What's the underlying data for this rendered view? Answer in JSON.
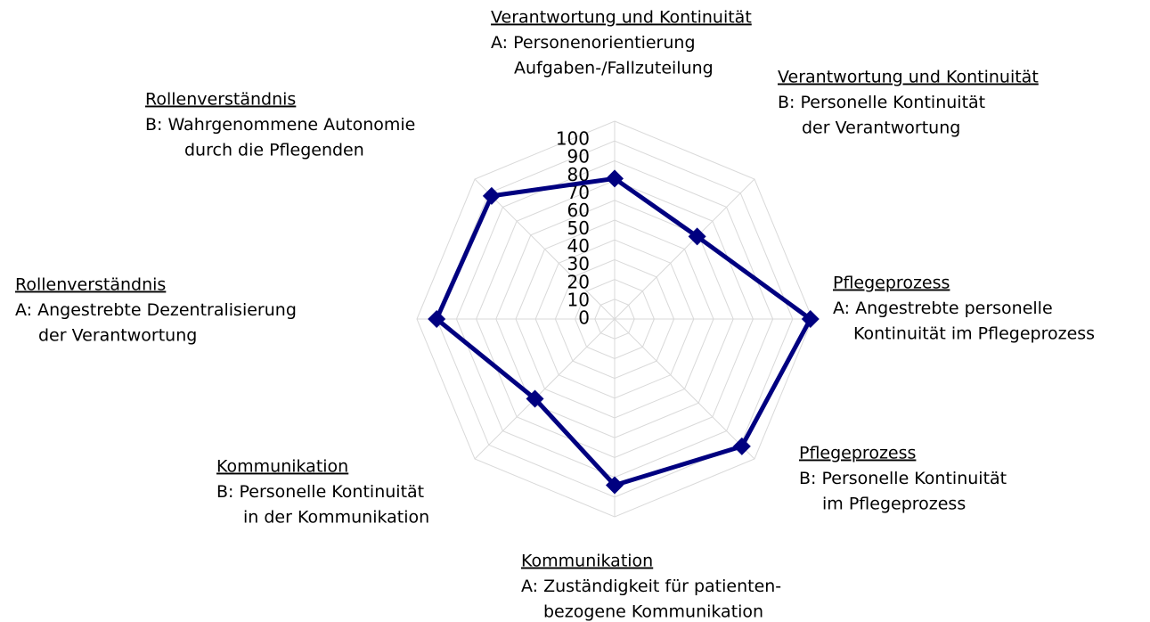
{
  "chart_data": {
    "type": "radar",
    "categories": [
      {
        "title": "Verantwortung und Kontinuität",
        "lines": [
          "A: Personenorientierung",
          "Aufgaben-/Fallzuteilung"
        ]
      },
      {
        "title": "Verantwortung und Kontinuität",
        "lines": [
          "B: Personelle Kontinuität",
          "der Verantwortung"
        ]
      },
      {
        "title": "Pflegeprozess",
        "lines": [
          "A: Angestrebte personelle",
          "Kontinuität im Pflegeprozess"
        ]
      },
      {
        "title": "Pflegeprozess",
        "lines": [
          "B: Personelle Kontinuität",
          "im Pflegeprozess"
        ]
      },
      {
        "title": "Kommunikation",
        "lines": [
          "A: Zuständigkeit für patienten-",
          "bezogene Kommunikation"
        ]
      },
      {
        "title": "Kommunikation",
        "lines": [
          "B: Personelle Kontinuität",
          "in der Kommunikation"
        ]
      },
      {
        "title": "Rollenverständnis",
        "lines": [
          "A: Angestrebte Dezentralisierung",
          "der Verantwortung"
        ]
      },
      {
        "title": "Rollenverständnis",
        "lines": [
          "B: Wahrgenommene Autonomie",
          "durch die Pflegenden"
        ]
      }
    ],
    "values": [
      71,
      59,
      99,
      91,
      84,
      57,
      90,
      88
    ],
    "color": "#000080",
    "ylim": [
      0,
      100
    ],
    "yticks": [
      0,
      10,
      20,
      30,
      40,
      50,
      60,
      70,
      80,
      90,
      100
    ],
    "grid": true
  }
}
